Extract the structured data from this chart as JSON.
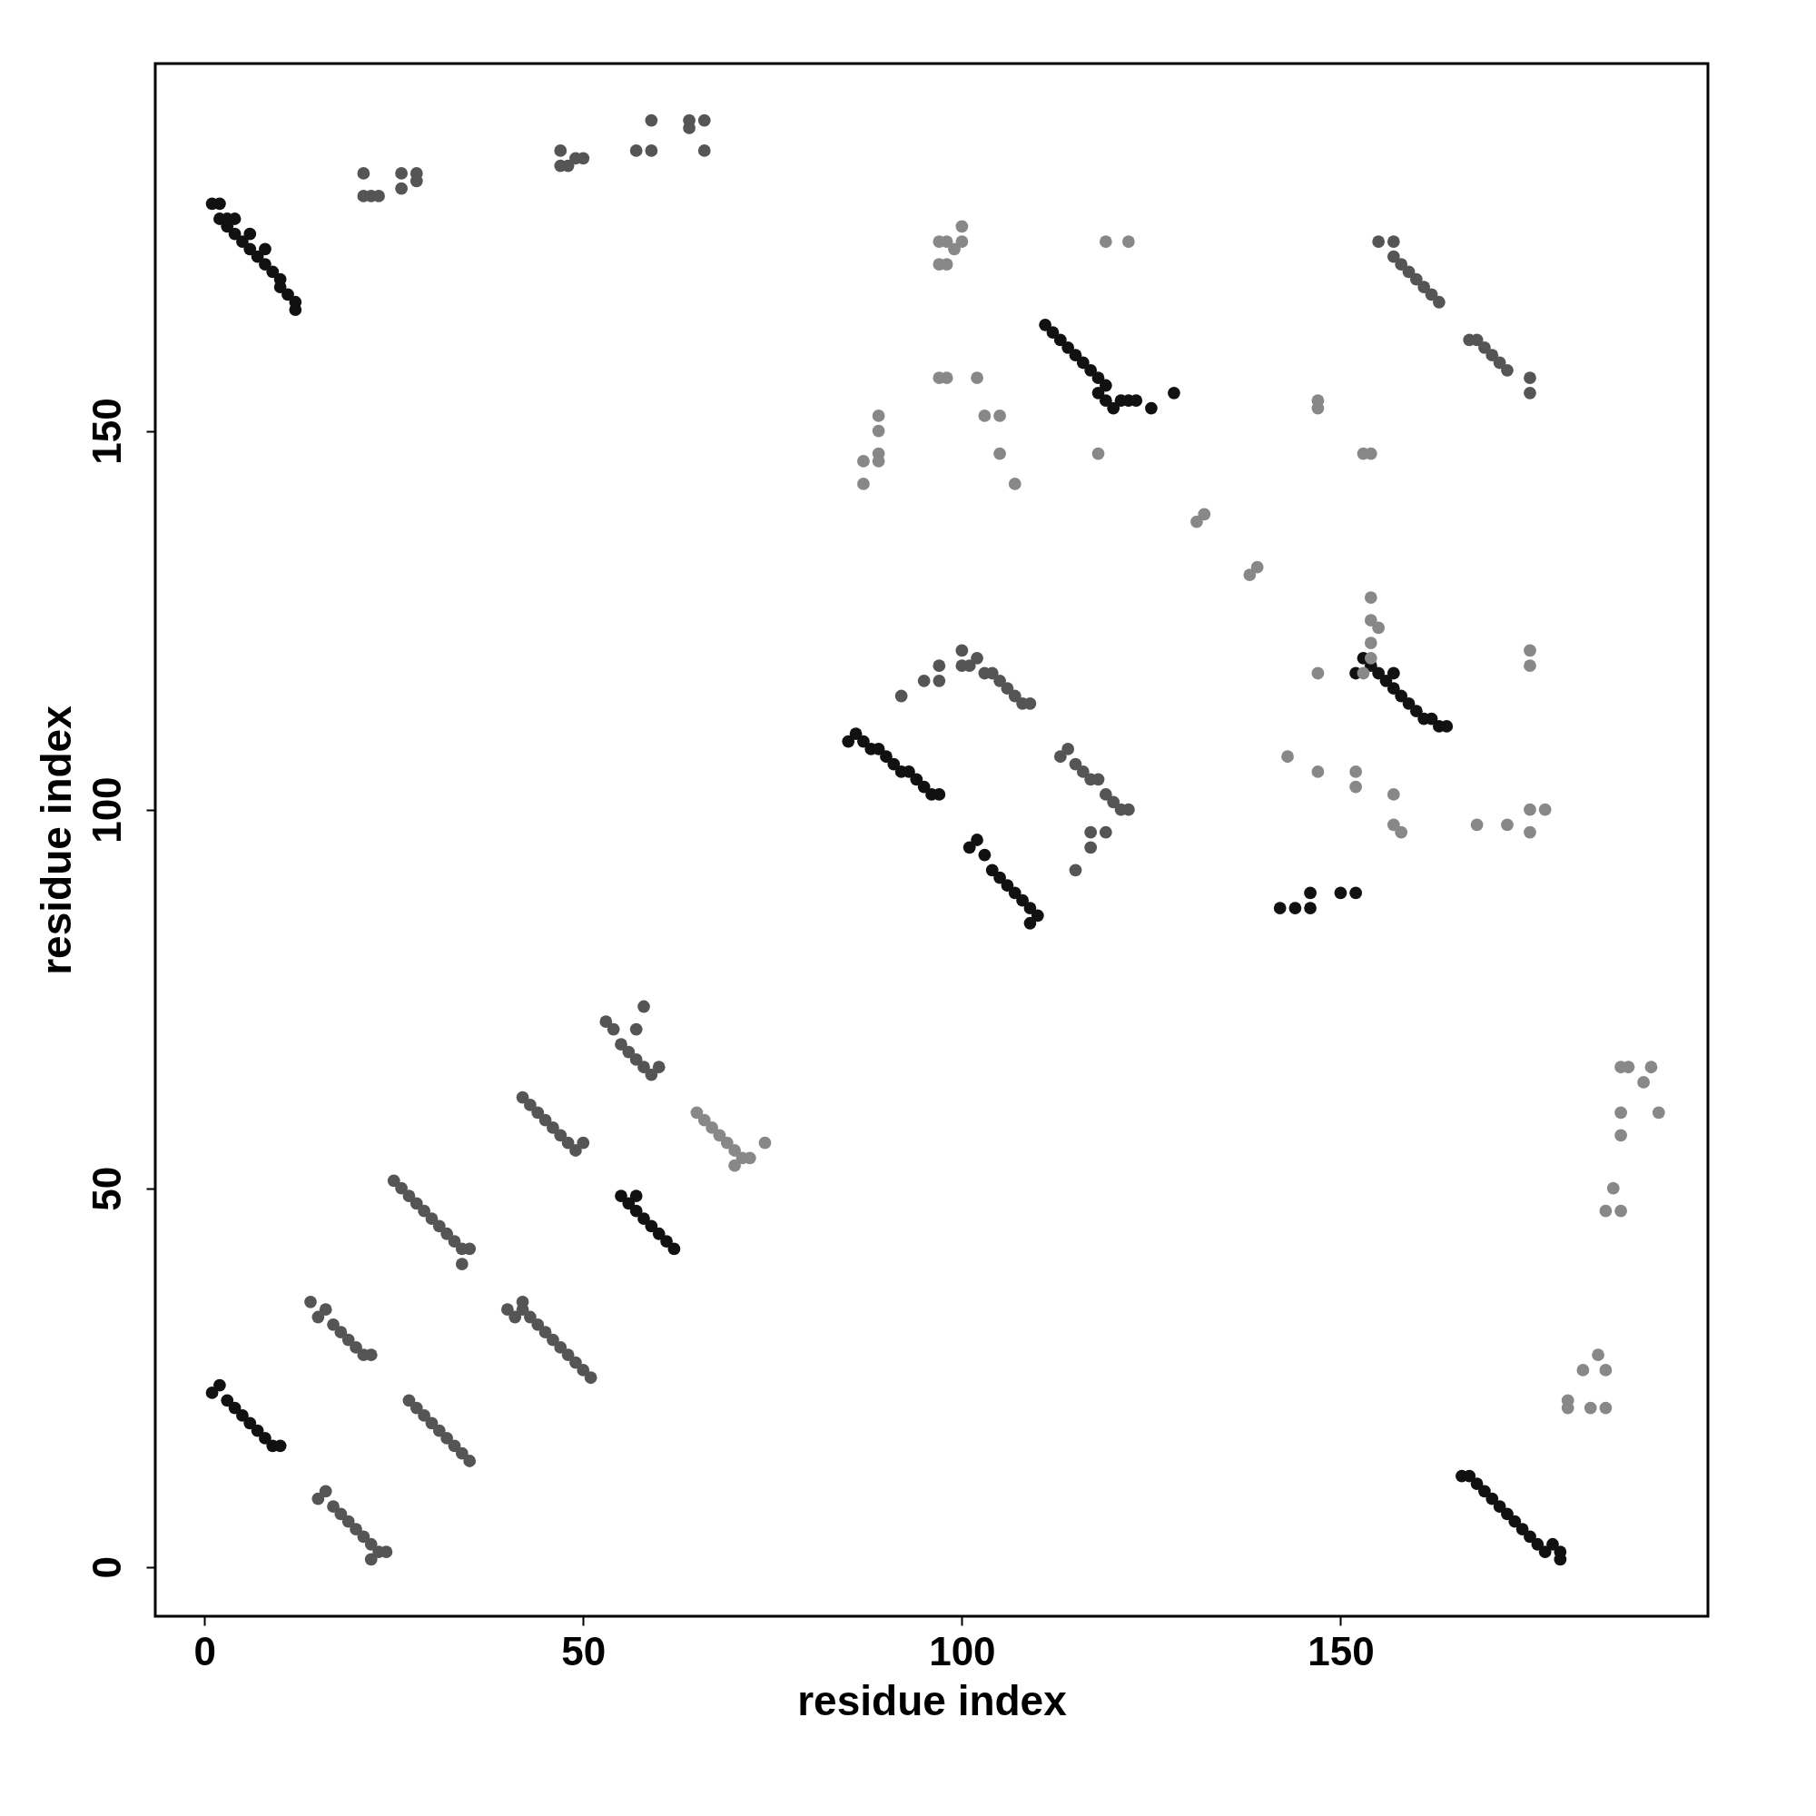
{
  "chart_data": {
    "type": "scatter",
    "xlabel": "residue index",
    "ylabel": "residue index",
    "xlim": [
      -6.5,
      198.5
    ],
    "ylim": [
      -6.5,
      198.5
    ],
    "xticks": [
      0,
      50,
      100,
      150
    ],
    "yticks": [
      0,
      50,
      100,
      150
    ],
    "grid": false,
    "marker": "circle",
    "series": [
      {
        "color": "#111111",
        "x": [
          1,
          2,
          2,
          3,
          3,
          4,
          4,
          5,
          6,
          6,
          7,
          8,
          8,
          9,
          10,
          10,
          11,
          12,
          12,
          111,
          112,
          113,
          114,
          115,
          116,
          117,
          118,
          119,
          118,
          119,
          120,
          121,
          122,
          123,
          125,
          128,
          152,
          153,
          154,
          155,
          156,
          157,
          157,
          158,
          159,
          160,
          161,
          162,
          163,
          164,
          85,
          86,
          87,
          88,
          89,
          90,
          91,
          92,
          93,
          94,
          95,
          96,
          97,
          101,
          102,
          103,
          104,
          105,
          106,
          107,
          108,
          109,
          110,
          109,
          55,
          56,
          57,
          58,
          59,
          60,
          61,
          62,
          57,
          1,
          2,
          3,
          4,
          5,
          6,
          7,
          8,
          9,
          10,
          166,
          167,
          168,
          169,
          170,
          171,
          172,
          173,
          174,
          175,
          176,
          177,
          178,
          179,
          179,
          142,
          146,
          150,
          152,
          144,
          146
        ],
        "values": [
          180,
          180,
          178,
          178,
          177,
          176,
          178,
          175,
          174,
          176,
          173,
          172,
          174,
          171,
          170,
          169,
          168,
          167,
          166,
          164,
          163,
          162,
          161,
          160,
          159,
          158,
          157,
          156,
          155,
          154,
          153,
          154,
          154,
          154,
          153,
          155,
          118,
          120,
          119,
          118,
          117,
          118,
          116,
          115,
          114,
          113,
          112,
          112,
          111,
          111,
          109,
          110,
          109,
          108,
          108,
          107,
          106,
          105,
          105,
          104,
          103,
          102,
          102,
          95,
          96,
          94,
          92,
          91,
          90,
          89,
          88,
          87,
          86,
          85,
          49,
          48,
          47,
          46,
          45,
          44,
          43,
          42,
          49,
          23,
          24,
          22,
          21,
          20,
          19,
          18,
          17,
          16,
          16,
          12,
          12,
          11,
          10,
          9,
          8,
          7,
          6,
          5,
          4,
          3,
          2,
          3,
          2,
          1,
          87,
          89,
          89,
          89,
          87,
          87
        ]
      },
      {
        "color": "#555555",
        "x": [
          155,
          157,
          157,
          158,
          159,
          160,
          161,
          162,
          163,
          167,
          168,
          169,
          170,
          171,
          172,
          175,
          175,
          100,
          101,
          102,
          103,
          104,
          105,
          106,
          107,
          108,
          109,
          92,
          95,
          97,
          97,
          100,
          113,
          114,
          115,
          116,
          117,
          118,
          119,
          120,
          121,
          122,
          117,
          117,
          119,
          115,
          53,
          54,
          55,
          56,
          57,
          58,
          59,
          60,
          58,
          57,
          42,
          43,
          44,
          45,
          46,
          47,
          48,
          49,
          50,
          25,
          26,
          27,
          28,
          29,
          30,
          31,
          32,
          33,
          34,
          35,
          34,
          40,
          41,
          42,
          43,
          44,
          45,
          46,
          47,
          48,
          49,
          50,
          51,
          42,
          14,
          15,
          16,
          17,
          18,
          19,
          20,
          21,
          22,
          27,
          28,
          29,
          30,
          31,
          32,
          33,
          34,
          35,
          15,
          16,
          17,
          18,
          19,
          20,
          21,
          22,
          23,
          24,
          22,
          21,
          21,
          22,
          23,
          26,
          26,
          28,
          28,
          47,
          47,
          48,
          49,
          50,
          57,
          59,
          59,
          64,
          66,
          66,
          64
        ],
        "values": [
          175,
          175,
          173,
          172,
          171,
          170,
          169,
          168,
          167,
          162,
          162,
          161,
          160,
          159,
          158,
          157,
          155,
          121,
          119,
          120,
          118,
          118,
          117,
          116,
          115,
          114,
          114,
          115,
          117,
          119,
          117,
          119,
          107,
          108,
          106,
          105,
          104,
          104,
          102,
          101,
          100,
          100,
          97,
          95,
          97,
          92,
          72,
          71,
          69,
          68,
          67,
          66,
          65,
          66,
          74,
          71,
          62,
          61,
          60,
          59,
          58,
          57,
          56,
          55,
          56,
          51,
          50,
          49,
          48,
          47,
          46,
          45,
          44,
          43,
          42,
          42,
          40,
          34,
          33,
          34,
          33,
          32,
          31,
          30,
          29,
          28,
          27,
          26,
          25,
          35,
          35,
          33,
          34,
          32,
          31,
          30,
          29,
          28,
          28,
          22,
          21,
          20,
          19,
          18,
          17,
          16,
          15,
          14,
          9,
          10,
          8,
          7,
          6,
          5,
          4,
          3,
          2,
          2,
          1,
          184,
          181,
          181,
          181,
          184,
          182,
          184,
          183,
          187,
          185,
          185,
          186,
          186,
          187,
          191,
          187,
          191,
          191,
          187,
          190
        ]
      },
      {
        "color": "#888888",
        "x": [
          97,
          97,
          98,
          98,
          99,
          100,
          100,
          119,
          122,
          87,
          87,
          89,
          89,
          89,
          89,
          97,
          98,
          102,
          103,
          105,
          105,
          107,
          118,
          147,
          147,
          153,
          154,
          131,
          132,
          138,
          139,
          154,
          154,
          155,
          154,
          154,
          153,
          147,
          175,
          175,
          143,
          147,
          152,
          152,
          157,
          157,
          158,
          168,
          172,
          175,
          177,
          175,
          65,
          66,
          67,
          68,
          69,
          70,
          71,
          72,
          74,
          70,
          180,
          182,
          184,
          185,
          185,
          183,
          180,
          185,
          186,
          187,
          187,
          187,
          192,
          187,
          188,
          191,
          190
        ],
        "values": [
          175,
          172,
          175,
          172,
          174,
          175,
          177,
          175,
          175,
          143,
          146,
          152,
          150,
          147,
          146,
          157,
          157,
          157,
          152,
          152,
          147,
          143,
          147,
          154,
          153,
          147,
          147,
          138,
          139,
          131,
          132,
          128,
          125,
          124,
          122,
          120,
          118,
          118,
          121,
          119,
          107,
          105,
          105,
          103,
          102,
          98,
          97,
          98,
          98,
          100,
          100,
          97,
          60,
          59,
          58,
          57,
          56,
          55,
          54,
          54,
          56,
          53,
          22,
          26,
          28,
          26,
          21,
          21,
          21,
          47,
          50,
          47,
          60,
          57,
          60,
          66,
          66,
          66,
          64
        ]
      }
    ]
  }
}
